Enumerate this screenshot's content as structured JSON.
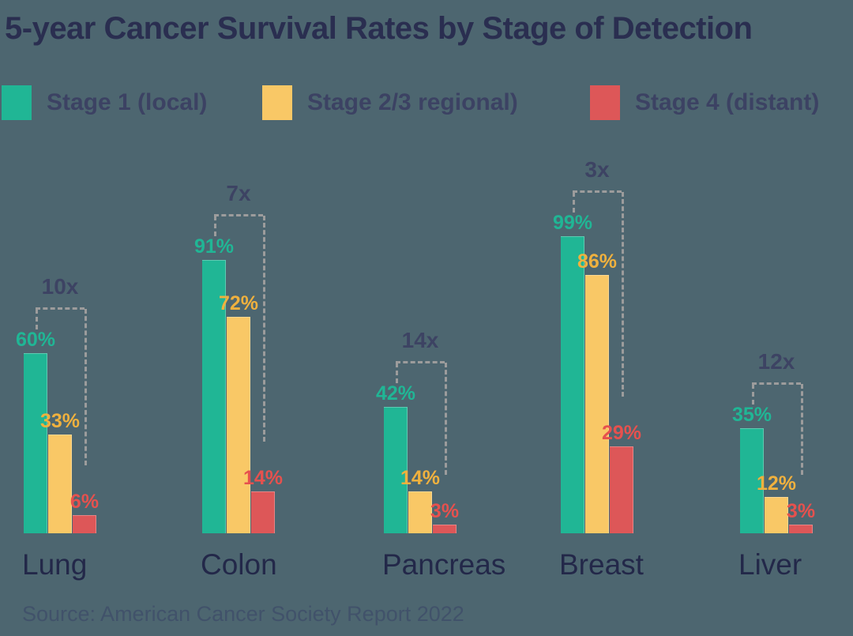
{
  "title": "5-year Cancer Survival Rates by Stage of Detection",
  "legend": {
    "items": [
      {
        "label": "Stage 1 (local)",
        "color": "#20b695"
      },
      {
        "label": "Stage 2/3 regional)",
        "color": "#f9c866"
      },
      {
        "label": "Stage 4 (distant)",
        "color": "#dd5758"
      }
    ]
  },
  "source_note": "Source: American Cancer Society Report 2022",
  "chart_data": {
    "type": "bar",
    "title": "5-year Cancer Survival Rates by Stage of Detection",
    "categories": [
      "Lung",
      "Colon",
      "Pancreas",
      "Breast",
      "Liver"
    ],
    "series": [
      {
        "name": "Stage 1 (local)",
        "color": "#20b695",
        "label_color": "#20b695",
        "values": [
          60,
          91,
          42,
          99,
          35
        ]
      },
      {
        "name": "Stage 2/3 regional)",
        "color": "#f9c866",
        "label_color": "#f0b13e",
        "values": [
          33,
          72,
          14,
          86,
          12
        ]
      },
      {
        "name": "Stage 4 (distant)",
        "color": "#dd5758",
        "label_color": "#e6514e",
        "values": [
          6,
          14,
          3,
          29,
          3
        ]
      }
    ],
    "value_suffix": "%",
    "multiplier_annotations": [
      "10x",
      "7x",
      "14x",
      "3x",
      "12x"
    ],
    "data_labels": true,
    "ylim": [
      0,
      100
    ],
    "grid": false,
    "axes_shown": false,
    "legend_position": "top-left"
  },
  "colors": {
    "background": "#4d6670",
    "title_text": "#2a2e50",
    "category_text": "#232849",
    "legend_text": "#3c4263",
    "annotation_text": "#3d4363",
    "dashed_line": "#9c9c9c",
    "source_text": "#41526a"
  }
}
